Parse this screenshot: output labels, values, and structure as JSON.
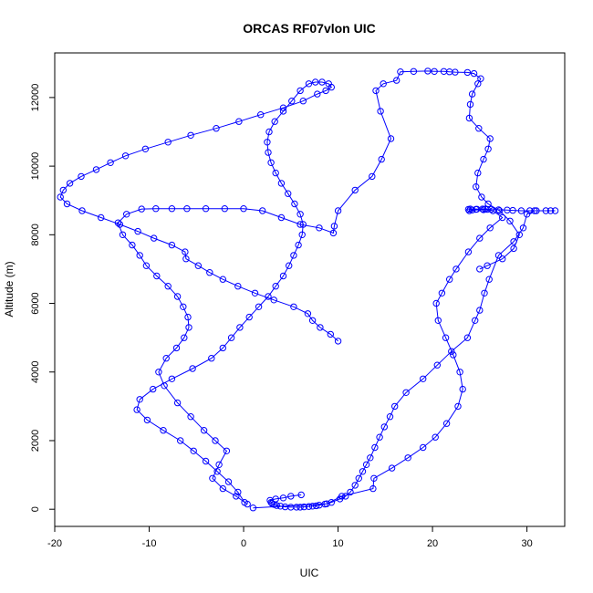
{
  "chart_data": {
    "type": "line",
    "title": "ORCAS RF07vlon UIC",
    "xlabel": "UIC",
    "ylabel": "Altitude (m)",
    "xlim": [
      -20,
      34
    ],
    "ylim": [
      -500,
      13300
    ],
    "x_ticks": [
      -20,
      -10,
      0,
      10,
      20,
      30
    ],
    "y_ticks": [
      0,
      2000,
      4000,
      6000,
      8000,
      10000,
      12000
    ],
    "series": [
      {
        "color": "#0000ff",
        "marker": "open-circle",
        "x": [
          1.0,
          8.8,
          10.4,
          13.7,
          13.8,
          15.7,
          17.4,
          19.0,
          20.3,
          21.5,
          22.7,
          23.2,
          22.9,
          22.2,
          21.4,
          20.6,
          20.4,
          21.0,
          21.8,
          22.5,
          23.8,
          25.0,
          26.1,
          27.4,
          26.4,
          25.3,
          24.6,
          23.9,
          24.2,
          25.4,
          26.2,
          25.6,
          24.7,
          23.8,
          24.0,
          25.8,
          27.0,
          27.9,
          28.5,
          29.4,
          30.3,
          31.0,
          32.5,
          33.0,
          32.0,
          30.8,
          30.0,
          29.6,
          28.6,
          27.0,
          26.0,
          25.5,
          25.0,
          24.5,
          23.7,
          22.0,
          20.5,
          19.0,
          17.2,
          16.0,
          15.5,
          14.9,
          14.4,
          13.9,
          13.4,
          13.0,
          12.6,
          12.2,
          11.8,
          11.3,
          10.8,
          10.2,
          9.3,
          8.6,
          8.0,
          7.7,
          7.3,
          6.9,
          6.4,
          6.0,
          5.6,
          5.0,
          4.4,
          3.9,
          3.5,
          3.2,
          3.0,
          2.9,
          2.8,
          3.4,
          4.2,
          5.0,
          6.1
        ],
        "y": [
          40,
          160,
          380,
          600,
          900,
          1200,
          1500,
          1800,
          2100,
          2500,
          3000,
          3500,
          4000,
          4500,
          5000,
          5500,
          6000,
          6300,
          6700,
          7000,
          7500,
          7900,
          8200,
          8500,
          8700,
          8750,
          8740,
          8700,
          8720,
          8730,
          8740,
          8750,
          8745,
          8740,
          8750,
          8740,
          8730,
          8720,
          8710,
          8700,
          8700,
          8700,
          8700,
          8700,
          8700,
          8700,
          8600,
          8200,
          7800,
          7400,
          6700,
          6300,
          5800,
          5500,
          5000,
          4600,
          4200,
          3800,
          3400,
          3000,
          2700,
          2400,
          2100,
          1800,
          1500,
          1300,
          1100,
          900,
          700,
          500,
          380,
          300,
          200,
          150,
          120,
          100,
          90,
          80,
          70,
          60,
          60,
          60,
          70,
          90,
          110,
          140,
          170,
          200,
          260,
          300,
          330,
          380,
          420
        ]
      },
      {
        "color": "#0000ff",
        "marker": "open-circle",
        "x": [
          0.4,
          -0.8,
          -2.2,
          -3.3,
          -2.6,
          -1.8,
          -3.0,
          -4.2,
          -5.6,
          -7.0,
          -8.4,
          -9.0,
          -8.2,
          -7.1,
          -6.3,
          -5.8,
          -5.9,
          -6.4,
          -7.0,
          -8.0,
          -9.2,
          -10.3,
          -11.0,
          -11.8,
          -12.8,
          -13.3,
          -12.4,
          -10.8,
          -9.3,
          -7.6,
          -6.0,
          -4.0,
          -2.0,
          0.0,
          2.0,
          4.0,
          6.0,
          8.0,
          9.5,
          9.6,
          10.0,
          11.8,
          13.6,
          14.6,
          15.6,
          14.5,
          14.0,
          14.8,
          16.2,
          16.6,
          18.0,
          19.5,
          20.2,
          21.2,
          21.8,
          22.4,
          23.7,
          24.4,
          25.1,
          24.8,
          24.2,
          24.0,
          23.9,
          24.9,
          26.1,
          25.9,
          25.4,
          24.8,
          24.6,
          25.2,
          25.9,
          27.1,
          28.2,
          29.2,
          28.6,
          27.4,
          25.8,
          25.0
        ],
        "y": [
          150,
          380,
          600,
          900,
          1300,
          1700,
          2000,
          2300,
          2700,
          3100,
          3600,
          4000,
          4400,
          4700,
          5000,
          5300,
          5600,
          5900,
          6200,
          6500,
          6800,
          7100,
          7400,
          7700,
          8000,
          8350,
          8600,
          8750,
          8760,
          8760,
          8760,
          8760,
          8760,
          8760,
          8700,
          8500,
          8300,
          8200,
          8050,
          8250,
          8700,
          9300,
          9700,
          10200,
          10800,
          11600,
          12200,
          12400,
          12500,
          12750,
          12760,
          12770,
          12760,
          12760,
          12750,
          12740,
          12730,
          12700,
          12550,
          12400,
          12100,
          11800,
          11400,
          11100,
          10800,
          10500,
          10200,
          9800,
          9400,
          9100,
          8900,
          8700,
          8400,
          8000,
          7600,
          7300,
          7100,
          7000
        ]
      },
      {
        "color": "#0000ff",
        "marker": "open-circle",
        "x": [
          0.1,
          -0.6,
          -1.6,
          -2.8,
          -4.0,
          -5.3,
          -6.7,
          -8.5,
          -10.2,
          -11.3,
          -11.0,
          -9.6,
          -7.6,
          -5.4,
          -3.4,
          -2.2,
          -1.3,
          -0.4,
          0.6,
          1.6,
          2.6,
          3.4,
          4.2,
          4.8,
          5.3,
          5.8,
          6.2,
          6.3,
          6.0,
          5.4,
          4.7,
          4.0,
          3.4,
          2.9,
          2.6,
          2.5,
          2.7,
          3.3,
          4.2,
          5.1,
          6.0,
          6.9,
          7.6,
          8.3,
          9.0,
          9.3,
          8.7,
          7.8,
          6.3,
          4.2,
          1.8,
          -0.5,
          -2.9,
          -5.6,
          -8.0,
          -10.4,
          -12.5,
          -14.1,
          -15.6,
          -17.2,
          -18.4,
          -19.1,
          -19.4,
          -18.7,
          -17.1,
          -15.1,
          -13.1,
          -11.2,
          -9.5,
          -7.6,
          -6.2,
          -6.1,
          -4.8,
          -3.6,
          -2.2,
          -0.6,
          1.2,
          3.2,
          5.3,
          6.8,
          7.3,
          8.1,
          9.2,
          10.0
        ],
        "y": [
          200,
          500,
          800,
          1100,
          1400,
          1700,
          2000,
          2300,
          2600,
          2900,
          3200,
          3500,
          3800,
          4100,
          4400,
          4700,
          5000,
          5300,
          5600,
          5900,
          6200,
          6500,
          6800,
          7100,
          7400,
          7700,
          8000,
          8300,
          8600,
          8900,
          9200,
          9500,
          9800,
          10100,
          10400,
          10700,
          11000,
          11300,
          11600,
          11900,
          12200,
          12400,
          12450,
          12450,
          12400,
          12300,
          12200,
          12100,
          11900,
          11700,
          11500,
          11300,
          11100,
          10900,
          10700,
          10500,
          10300,
          10100,
          9900,
          9700,
          9500,
          9300,
          9100,
          8900,
          8700,
          8500,
          8300,
          8100,
          7900,
          7700,
          7500,
          7300,
          7100,
          6900,
          6700,
          6500,
          6300,
          6100,
          5900,
          5700,
          5500,
          5300,
          5100,
          4900
        ]
      }
    ]
  }
}
